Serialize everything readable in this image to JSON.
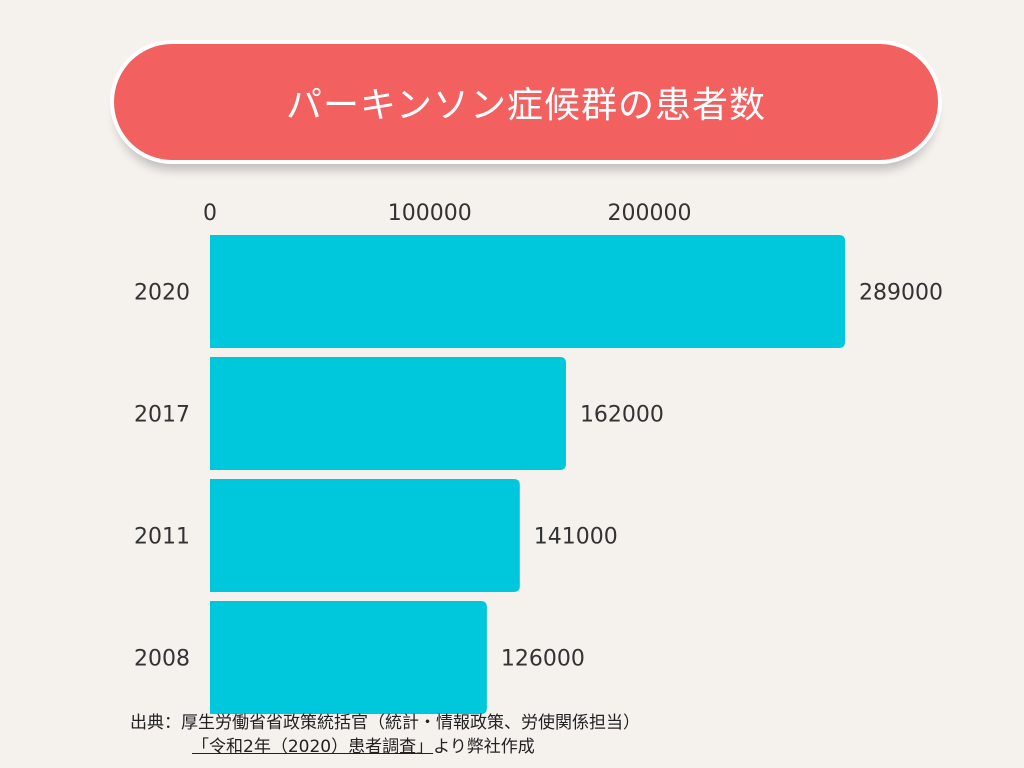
{
  "title": "パーキンソン症候群の患者数",
  "chart_data": {
    "type": "bar",
    "orientation": "horizontal",
    "title": "パーキンソン症候群の患者数",
    "categories": [
      "2020",
      "2017",
      "2011",
      "2008"
    ],
    "values": [
      289000,
      162000,
      141000,
      126000
    ],
    "value_labels": [
      "289000",
      "162000",
      "141000",
      "126000"
    ],
    "x_ticks": [
      0,
      100000,
      200000
    ],
    "x_tick_labels": [
      "0",
      "100000",
      "200000"
    ],
    "xlim": [
      0,
      300000
    ],
    "x_axis_position": "top",
    "grid": false,
    "bar_color": "#00c8dc"
  },
  "source": {
    "line1": "出典：厚生労働省省政策統括官（統計・情報政策、労使関係担当）",
    "line2_link": "「令和2年（2020）患者調査」",
    "line2_rest": "より弊社作成"
  }
}
